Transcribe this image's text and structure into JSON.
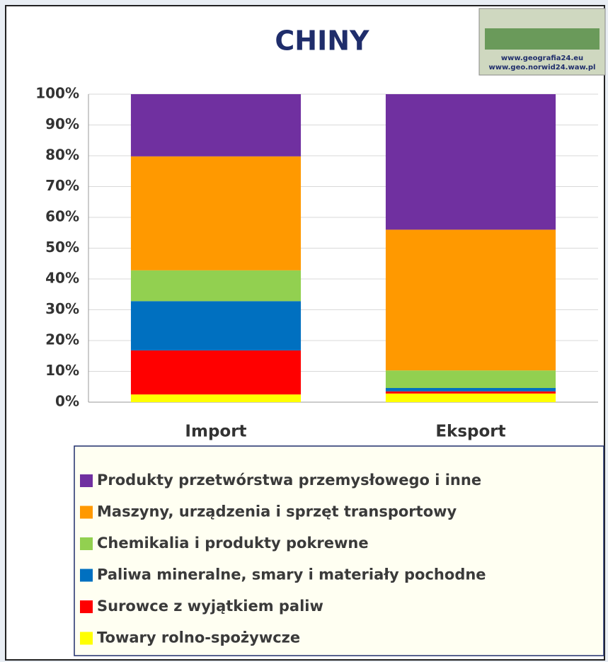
{
  "chart_data": {
    "type": "stacked_bar",
    "title": "CHINY",
    "categories": [
      "Import",
      "Eksport"
    ],
    "series": [
      {
        "name": "Towary  rolno-spożywcze",
        "color": "#ffff00",
        "values": [
          2.5,
          2.8
        ]
      },
      {
        "name": "Surowce z wyjątkiem paliw",
        "color": "#ff0000",
        "values": [
          14.3,
          0.7
        ]
      },
      {
        "name": "Paliwa mineralne, smary i materiały pochodne",
        "color": "#0070c0",
        "values": [
          16,
          1.1
        ]
      },
      {
        "name": "Chemikalia i produkty pokrewne",
        "color": "#92d050",
        "values": [
          10,
          5.7
        ]
      },
      {
        "name": "Maszyny, urządzenia i sprzęt transportowy",
        "color": "#ff9900",
        "values": [
          37,
          45.7
        ]
      },
      {
        "name": "Produkty przetwórstwa przemysłowego i inne",
        "color": "#7030a0",
        "values": [
          20.2,
          44
        ]
      }
    ],
    "ylim": [
      0,
      100
    ],
    "yticks": [
      {
        "value": 0,
        "label": "0%"
      },
      {
        "value": 10,
        "label": "10%"
      },
      {
        "value": 20,
        "label": "20%"
      },
      {
        "value": 30,
        "label": "30%"
      },
      {
        "value": 40,
        "label": "40%"
      },
      {
        "value": 50,
        "label": "50%"
      },
      {
        "value": 60,
        "label": "60%"
      },
      {
        "value": 70,
        "label": "70%"
      },
      {
        "value": 80,
        "label": "80%"
      },
      {
        "value": 90,
        "label": "90%"
      },
      {
        "value": 100,
        "label": "100%"
      }
    ],
    "grid": true,
    "legend": "bottom",
    "annotations": [
      "www.geografia24.eu",
      "www.geo.norwid24.waw.pl"
    ]
  }
}
